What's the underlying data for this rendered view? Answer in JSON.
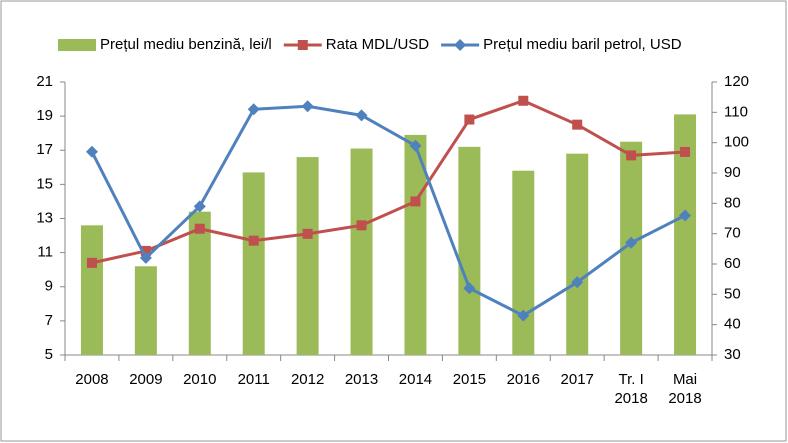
{
  "chart_data": {
    "type": "bar",
    "categories": [
      "2008",
      "2009",
      "2010",
      "2011",
      "2012",
      "2013",
      "2014",
      "2015",
      "2016",
      "2017",
      "Tr. I 2018",
      "Mai 2018"
    ],
    "series": [
      {
        "name": "Prețul mediu benzină, lei/l",
        "type": "bar",
        "color": "#9bbb59",
        "values": [
          12.6,
          10.2,
          13.4,
          15.7,
          16.6,
          17.1,
          17.9,
          17.2,
          15.8,
          16.8,
          17.5,
          19.1
        ]
      },
      {
        "name": "Rata MDL/USD",
        "type": "line",
        "color": "#c0504d",
        "marker": "square",
        "values": [
          10.4,
          11.1,
          12.4,
          11.7,
          12.1,
          12.6,
          14.0,
          18.8,
          19.9,
          18.5,
          16.7,
          16.9
        ]
      },
      {
        "name": "Prețul mediu baril petrol, USD",
        "type": "line",
        "color": "#4f81bd",
        "marker": "diamond",
        "axis": "y2",
        "values": [
          97,
          62,
          79,
          111,
          112,
          109,
          99,
          52,
          43,
          54,
          67,
          76
        ]
      }
    ],
    "ylim": [
      5,
      21
    ],
    "yticks": [
      5,
      7,
      9,
      11,
      13,
      15,
      17,
      19,
      21
    ],
    "y2lim": [
      30,
      120
    ],
    "y2ticks": [
      30,
      40,
      50,
      60,
      70,
      80,
      90,
      100,
      110,
      120
    ],
    "grid": false,
    "legend": "top"
  }
}
